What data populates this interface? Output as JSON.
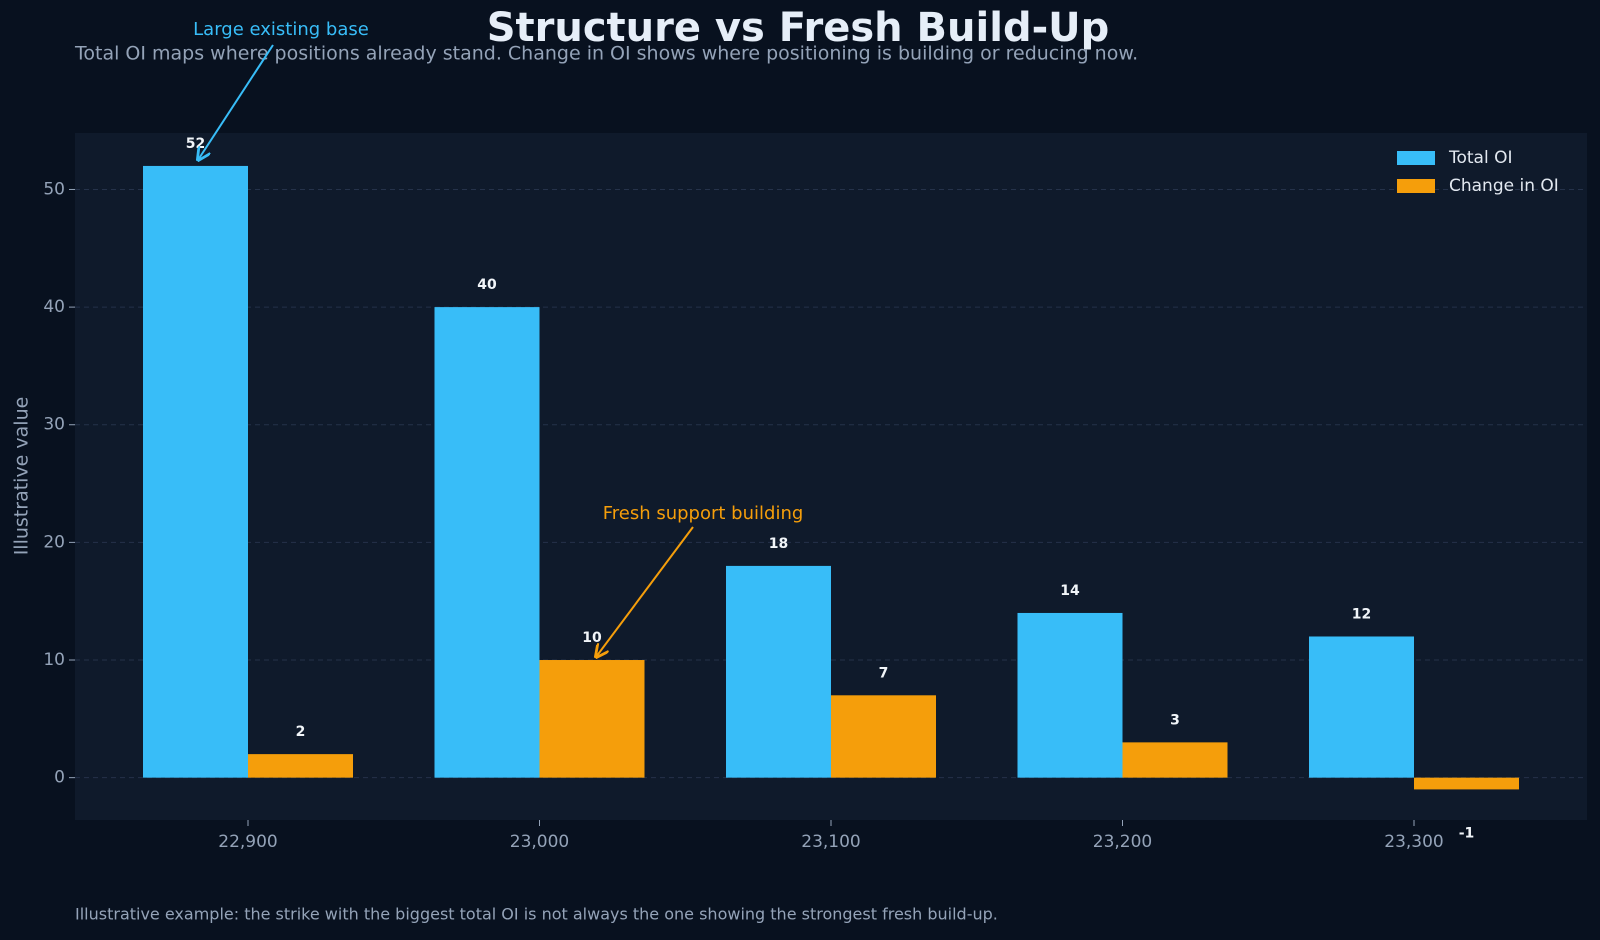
{
  "chart_data": {
    "type": "bar",
    "title": "Structure vs Fresh Build-Up",
    "subtitle": "Total OI maps where positions already stand. Change in OI shows where positioning is building or reducing now.",
    "note": "Illustrative example: the strike with the biggest total OI is not always the one showing the strongest fresh build-up.",
    "y_label": "Illustrative value",
    "categories": [
      "22,900",
      "23,000",
      "23,100",
      "23,200",
      "23,300"
    ],
    "series": [
      {
        "name": "Total OI",
        "color": "#38bdf8",
        "values": [
          52,
          40,
          18,
          14,
          12
        ]
      },
      {
        "name": "Change in OI",
        "color": "#f59e0b",
        "values": [
          2,
          10,
          7,
          3,
          -1
        ]
      }
    ],
    "annotations": [
      {
        "text": "Large existing base",
        "color": "#38bdf8"
      },
      {
        "text": "Fresh support building",
        "color": "#f59e0b"
      }
    ],
    "ylim": [
      -3.6,
      54.8
    ],
    "yticks": [
      0,
      10,
      20,
      30,
      40,
      50
    ],
    "grid": true,
    "legend": "upper right"
  }
}
